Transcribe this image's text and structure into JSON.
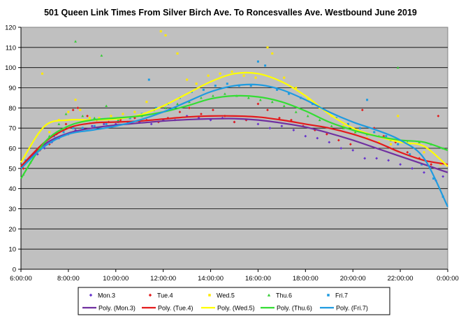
{
  "chart_data": {
    "type": "scatter",
    "title": "501 Queen Link Times From Silver Birch Ave. To Roncesvalles Ave. Westbound June 2019",
    "xlabel": "",
    "ylabel": "",
    "x_ticks": [
      "6:00:00",
      "8:00:00",
      "10:00:00",
      "12:00:00",
      "14:00:00",
      "16:00:00",
      "18:00:00",
      "20:00:00",
      "22:00:00",
      "0:00:00"
    ],
    "xlim": [
      6,
      24
    ],
    "ylim": [
      0,
      120
    ],
    "y_ticks": [
      0,
      10,
      20,
      30,
      40,
      50,
      60,
      70,
      80,
      90,
      100,
      110,
      120
    ],
    "grid": true,
    "legend_position": "bottom",
    "series": [
      {
        "name": "Mon.3",
        "color": "#6633cc",
        "marker": "diamond",
        "points": [
          [
            6.1,
            52
          ],
          [
            6.4,
            55
          ],
          [
            6.7,
            57
          ],
          [
            7.0,
            60
          ],
          [
            7.3,
            63
          ],
          [
            7.6,
            65
          ],
          [
            8.0,
            67
          ],
          [
            8.3,
            69
          ],
          [
            8.6,
            70
          ],
          [
            9.0,
            71
          ],
          [
            9.5,
            72
          ],
          [
            10.0,
            72
          ],
          [
            10.5,
            73
          ],
          [
            11.0,
            73
          ],
          [
            11.5,
            72
          ],
          [
            12.0,
            74
          ],
          [
            12.5,
            74
          ],
          [
            13.0,
            76
          ],
          [
            13.5,
            75
          ],
          [
            14.0,
            74
          ],
          [
            14.5,
            75
          ],
          [
            15.0,
            73
          ],
          [
            15.5,
            74
          ],
          [
            16.0,
            72
          ],
          [
            16.5,
            70
          ],
          [
            17.0,
            71
          ],
          [
            17.5,
            69
          ],
          [
            18.0,
            66
          ],
          [
            18.5,
            65
          ],
          [
            19.0,
            63
          ],
          [
            19.5,
            60
          ],
          [
            20.0,
            59
          ],
          [
            20.5,
            55
          ],
          [
            21.0,
            55
          ],
          [
            21.5,
            54
          ],
          [
            22.0,
            52
          ],
          [
            22.5,
            50
          ],
          [
            23.0,
            48
          ],
          [
            23.5,
            44
          ],
          [
            23.8,
            46
          ]
        ]
      },
      {
        "name": "Tue.4",
        "color": "#e31a1c",
        "marker": "diamond",
        "points": [
          [
            6.1,
            50
          ],
          [
            6.5,
            56
          ],
          [
            6.8,
            59
          ],
          [
            7.2,
            62
          ],
          [
            7.5,
            67
          ],
          [
            7.9,
            72
          ],
          [
            8.2,
            79
          ],
          [
            8.4,
            80
          ],
          [
            8.8,
            76
          ],
          [
            9.2,
            74
          ],
          [
            9.7,
            73
          ],
          [
            10.2,
            74
          ],
          [
            10.8,
            75
          ],
          [
            11.3,
            74
          ],
          [
            11.8,
            73
          ],
          [
            12.2,
            75
          ],
          [
            12.7,
            78
          ],
          [
            13.1,
            80
          ],
          [
            13.6,
            77
          ],
          [
            14.1,
            79
          ],
          [
            14.6,
            76
          ],
          [
            15.0,
            73
          ],
          [
            15.5,
            74
          ],
          [
            16.0,
            82
          ],
          [
            16.4,
            79
          ],
          [
            16.9,
            75
          ],
          [
            17.4,
            74
          ],
          [
            17.9,
            71
          ],
          [
            18.4,
            69
          ],
          [
            18.9,
            67
          ],
          [
            19.4,
            64
          ],
          [
            19.9,
            62
          ],
          [
            20.4,
            79
          ],
          [
            20.9,
            70
          ],
          [
            21.3,
            66
          ],
          [
            21.8,
            63
          ],
          [
            22.3,
            58
          ],
          [
            22.8,
            55
          ],
          [
            23.3,
            52
          ],
          [
            23.6,
            76
          ]
        ]
      },
      {
        "name": "Wed.5",
        "color": "#ffea00",
        "marker": "square",
        "points": [
          [
            6.2,
            53
          ],
          [
            6.6,
            58
          ],
          [
            6.9,
            97
          ],
          [
            7.2,
            68
          ],
          [
            7.6,
            74
          ],
          [
            8.0,
            78
          ],
          [
            8.3,
            84
          ],
          [
            8.5,
            79
          ],
          [
            8.9,
            75
          ],
          [
            9.3,
            75
          ],
          [
            9.8,
            76
          ],
          [
            10.3,
            77
          ],
          [
            10.8,
            78
          ],
          [
            11.3,
            83
          ],
          [
            11.9,
            118
          ],
          [
            12.1,
            116
          ],
          [
            12.6,
            107
          ],
          [
            13.0,
            94
          ],
          [
            13.4,
            92
          ],
          [
            13.9,
            96
          ],
          [
            14.4,
            97
          ],
          [
            14.9,
            98
          ],
          [
            15.4,
            96
          ],
          [
            15.9,
            95
          ],
          [
            16.4,
            110
          ],
          [
            16.6,
            107
          ],
          [
            17.1,
            95
          ],
          [
            17.6,
            90
          ],
          [
            18.1,
            84
          ],
          [
            18.6,
            80
          ],
          [
            19.1,
            76
          ],
          [
            19.6,
            71
          ],
          [
            20.1,
            68
          ],
          [
            20.6,
            65
          ],
          [
            21.1,
            63
          ],
          [
            21.6,
            62
          ],
          [
            21.9,
            76
          ],
          [
            22.4,
            62
          ],
          [
            23.0,
            58
          ],
          [
            23.7,
            52
          ]
        ]
      },
      {
        "name": "Thu.6",
        "color": "#33cc33",
        "marker": "triangle",
        "points": [
          [
            6.1,
            47
          ],
          [
            6.4,
            53
          ],
          [
            6.8,
            60
          ],
          [
            7.2,
            66
          ],
          [
            7.6,
            72
          ],
          [
            7.9,
            77
          ],
          [
            8.3,
            113
          ],
          [
            8.6,
            76
          ],
          [
            9.1,
            75
          ],
          [
            9.4,
            106
          ],
          [
            9.6,
            81
          ],
          [
            10.1,
            74
          ],
          [
            10.6,
            75
          ],
          [
            11.1,
            76
          ],
          [
            11.6,
            79
          ],
          [
            12.1,
            80
          ],
          [
            12.6,
            82
          ],
          [
            13.1,
            83
          ],
          [
            13.6,
            85
          ],
          [
            14.1,
            86
          ],
          [
            14.6,
            87
          ],
          [
            15.1,
            86
          ],
          [
            15.6,
            85
          ],
          [
            16.1,
            84
          ],
          [
            16.6,
            83
          ],
          [
            17.1,
            81
          ],
          [
            17.6,
            78
          ],
          [
            18.1,
            76
          ],
          [
            18.6,
            74
          ],
          [
            19.1,
            71
          ],
          [
            19.6,
            70
          ],
          [
            20.1,
            68
          ],
          [
            20.6,
            67
          ],
          [
            21.1,
            66
          ],
          [
            21.6,
            64
          ],
          [
            21.9,
            100
          ],
          [
            22.3,
            63
          ],
          [
            22.8,
            63
          ],
          [
            23.3,
            62
          ],
          [
            23.8,
            60
          ]
        ]
      },
      {
        "name": "Fri.7",
        "color": "#1e9be0",
        "marker": "square",
        "points": [
          [
            6.2,
            54
          ],
          [
            6.6,
            58
          ],
          [
            7.0,
            62
          ],
          [
            7.4,
            66
          ],
          [
            7.8,
            68
          ],
          [
            8.2,
            70
          ],
          [
            8.6,
            70
          ],
          [
            9.1,
            71
          ],
          [
            9.6,
            72
          ],
          [
            10.1,
            73
          ],
          [
            10.6,
            75
          ],
          [
            11.1,
            77
          ],
          [
            11.4,
            94
          ],
          [
            11.7,
            80
          ],
          [
            12.2,
            82
          ],
          [
            12.7,
            85
          ],
          [
            13.2,
            88
          ],
          [
            13.7,
            89
          ],
          [
            14.2,
            91
          ],
          [
            14.7,
            92
          ],
          [
            15.2,
            91
          ],
          [
            15.7,
            91
          ],
          [
            16.0,
            103
          ],
          [
            16.3,
            101
          ],
          [
            16.8,
            89
          ],
          [
            17.3,
            87
          ],
          [
            17.8,
            85
          ],
          [
            18.3,
            82
          ],
          [
            18.8,
            79
          ],
          [
            19.3,
            75
          ],
          [
            19.8,
            72
          ],
          [
            20.3,
            70
          ],
          [
            20.6,
            84
          ],
          [
            20.9,
            68
          ],
          [
            21.4,
            66
          ],
          [
            21.9,
            62
          ],
          [
            22.4,
            57
          ],
          [
            22.9,
            52
          ],
          [
            23.4,
            45
          ],
          [
            23.8,
            36
          ]
        ]
      }
    ],
    "trendlines": [
      {
        "name": "Poly. (Mon.3)",
        "color": "#7030a0",
        "points": [
          [
            6,
            51
          ],
          [
            7,
            62
          ],
          [
            8,
            67.5
          ],
          [
            9,
            70
          ],
          [
            10,
            71.5
          ],
          [
            11,
            72.5
          ],
          [
            12,
            73.5
          ],
          [
            13,
            74.2
          ],
          [
            14,
            74.6
          ],
          [
            15,
            74.7
          ],
          [
            16,
            74
          ],
          [
            17,
            72.5
          ],
          [
            18,
            70.5
          ],
          [
            19,
            67.5
          ],
          [
            20,
            64
          ],
          [
            21,
            60
          ],
          [
            22,
            56
          ],
          [
            23,
            52
          ],
          [
            24,
            48
          ]
        ]
      },
      {
        "name": "Poly. (Tue.4)",
        "color": "#e31a1c",
        "points": [
          [
            6,
            51
          ],
          [
            7,
            63
          ],
          [
            8,
            70
          ],
          [
            9,
            72.5
          ],
          [
            10,
            73
          ],
          [
            11,
            73.5
          ],
          [
            12,
            74.5
          ],
          [
            13,
            75.5
          ],
          [
            14,
            76
          ],
          [
            15,
            76
          ],
          [
            16,
            75.5
          ],
          [
            17,
            74
          ],
          [
            18,
            72
          ],
          [
            19,
            70
          ],
          [
            20,
            67
          ],
          [
            21,
            63
          ],
          [
            22,
            58
          ],
          [
            23,
            54
          ],
          [
            24,
            52
          ]
        ]
      },
      {
        "name": "Poly. (Wed.5)",
        "color": "#ffff00",
        "points": [
          [
            6,
            53
          ],
          [
            7,
            71
          ],
          [
            8,
            74
          ],
          [
            9,
            74
          ],
          [
            10,
            74.5
          ],
          [
            11,
            76.5
          ],
          [
            12,
            81
          ],
          [
            13,
            87
          ],
          [
            14,
            93
          ],
          [
            15,
            97
          ],
          [
            16,
            97
          ],
          [
            17,
            93
          ],
          [
            18,
            86
          ],
          [
            19,
            77
          ],
          [
            20,
            70
          ],
          [
            21,
            66
          ],
          [
            22,
            63
          ],
          [
            23,
            61
          ],
          [
            24,
            51
          ]
        ]
      },
      {
        "name": "Poly. (Thu.6)",
        "color": "#33dd33",
        "points": [
          [
            6,
            45
          ],
          [
            7,
            63
          ],
          [
            8,
            71
          ],
          [
            9,
            74
          ],
          [
            10,
            75
          ],
          [
            11,
            76
          ],
          [
            12,
            78
          ],
          [
            13,
            81
          ],
          [
            14,
            84.5
          ],
          [
            15,
            86
          ],
          [
            16,
            85.5
          ],
          [
            17,
            83
          ],
          [
            18,
            78.5
          ],
          [
            19,
            73
          ],
          [
            20,
            69
          ],
          [
            21,
            66
          ],
          [
            22,
            64
          ],
          [
            23,
            63
          ],
          [
            24,
            59
          ]
        ]
      },
      {
        "name": "Poly. (Fri.7)",
        "color": "#1e9be0",
        "points": [
          [
            6,
            50
          ],
          [
            7,
            61
          ],
          [
            8,
            67
          ],
          [
            9,
            69
          ],
          [
            10,
            71
          ],
          [
            11,
            74
          ],
          [
            12,
            78
          ],
          [
            13,
            83
          ],
          [
            14,
            88
          ],
          [
            15,
            91
          ],
          [
            16,
            91.5
          ],
          [
            17,
            89
          ],
          [
            18,
            84
          ],
          [
            19,
            78
          ],
          [
            20,
            73
          ],
          [
            21,
            69
          ],
          [
            22,
            64
          ],
          [
            23,
            55
          ],
          [
            24,
            31
          ]
        ]
      }
    ]
  }
}
